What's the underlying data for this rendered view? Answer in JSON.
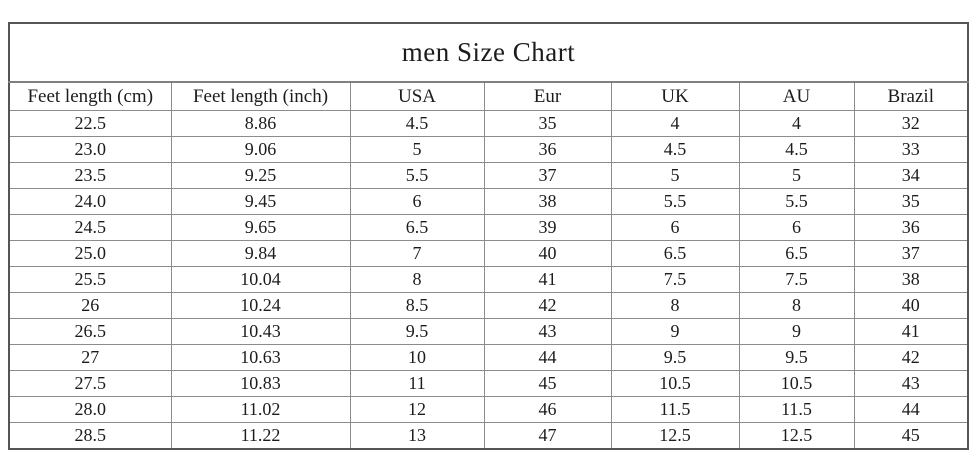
{
  "chart_data": {
    "type": "table",
    "title": "men Size Chart",
    "columns": [
      "Feet length (cm)",
      "Feet length (inch)",
      "USA",
      "Eur",
      "UK",
      "AU",
      "Brazil"
    ],
    "rows": [
      [
        "22.5",
        "8.86",
        "4.5",
        "35",
        "4",
        "4",
        "32"
      ],
      [
        "23.0",
        "9.06",
        "5",
        "36",
        "4.5",
        "4.5",
        "33"
      ],
      [
        "23.5",
        "9.25",
        "5.5",
        "37",
        "5",
        "5",
        "34"
      ],
      [
        "24.0",
        "9.45",
        "6",
        "38",
        "5.5",
        "5.5",
        "35"
      ],
      [
        "24.5",
        "9.65",
        "6.5",
        "39",
        "6",
        "6",
        "36"
      ],
      [
        "25.0",
        "9.84",
        "7",
        "40",
        "6.5",
        "6.5",
        "37"
      ],
      [
        "25.5",
        "10.04",
        "8",
        "41",
        "7.5",
        "7.5",
        "38"
      ],
      [
        "26",
        "10.24",
        "8.5",
        "42",
        "8",
        "8",
        "40"
      ],
      [
        "26.5",
        "10.43",
        "9.5",
        "43",
        "9",
        "9",
        "41"
      ],
      [
        "27",
        "10.63",
        "10",
        "44",
        "9.5",
        "9.5",
        "42"
      ],
      [
        "27.5",
        "10.83",
        "11",
        "45",
        "10.5",
        "10.5",
        "43"
      ],
      [
        "28.0",
        "11.02",
        "12",
        "46",
        "11.5",
        "11.5",
        "44"
      ],
      [
        "28.5",
        "11.22",
        "13",
        "47",
        "12.5",
        "12.5",
        "45"
      ]
    ],
    "layout": {
      "grid": true,
      "text_color": "#1c1c1c",
      "border_color": "#8c8c8c",
      "background": "#ffffff"
    }
  }
}
